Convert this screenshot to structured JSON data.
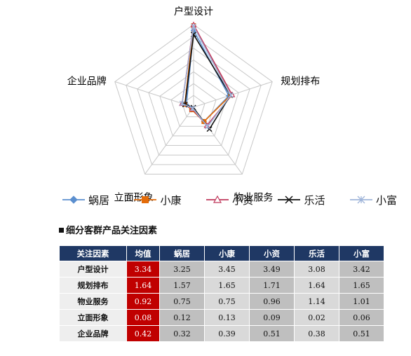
{
  "chart_data": {
    "type": "radar",
    "axes": [
      "户型设计",
      "规划排布",
      "物业服务",
      "立面形象",
      "企业品牌"
    ],
    "rlim": [
      0,
      3.5
    ],
    "grid": true,
    "series": [
      {
        "name": "蜗居",
        "values": [
          3.25,
          1.57,
          0.75,
          0.12,
          0.32
        ],
        "color": "#5b8fcf",
        "marker": "diamond"
      },
      {
        "name": "小康",
        "values": [
          3.45,
          1.65,
          0.75,
          0.13,
          0.39
        ],
        "color": "#e46c0a",
        "marker": "square"
      },
      {
        "name": "小资",
        "values": [
          3.49,
          1.71,
          0.96,
          0.09,
          0.51
        ],
        "color": "#c0395c",
        "marker": "triangle"
      },
      {
        "name": "乐活",
        "values": [
          3.08,
          1.64,
          1.14,
          0.02,
          0.38
        ],
        "color": "#111111",
        "marker": "x"
      },
      {
        "name": "小富",
        "values": [
          3.42,
          1.65,
          1.01,
          0.06,
          0.51
        ],
        "color": "#9fb4d9",
        "marker": "star"
      }
    ],
    "legend_position": "bottom"
  },
  "table": {
    "title": "细分客群产品关注因素",
    "headers": [
      "关注因素",
      "均值",
      "蜗居",
      "小康",
      "小资",
      "乐活",
      "小富"
    ],
    "rows": [
      {
        "label": "户型设计",
        "avg": "3.34",
        "values": [
          "3.25",
          "3.45",
          "3.49",
          "3.08",
          "3.42"
        ]
      },
      {
        "label": "规划排布",
        "avg": "1.64",
        "values": [
          "1.57",
          "1.65",
          "1.71",
          "1.64",
          "1.65"
        ]
      },
      {
        "label": "物业服务",
        "avg": "0.92",
        "values": [
          "0.75",
          "0.75",
          "0.96",
          "1.14",
          "1.01"
        ]
      },
      {
        "label": "立面形象",
        "avg": "0.08",
        "values": [
          "0.12",
          "0.13",
          "0.09",
          "0.02",
          "0.06"
        ]
      },
      {
        "label": "企业品牌",
        "avg": "0.42",
        "values": [
          "0.32",
          "0.39",
          "0.51",
          "0.38",
          "0.51"
        ]
      }
    ]
  }
}
